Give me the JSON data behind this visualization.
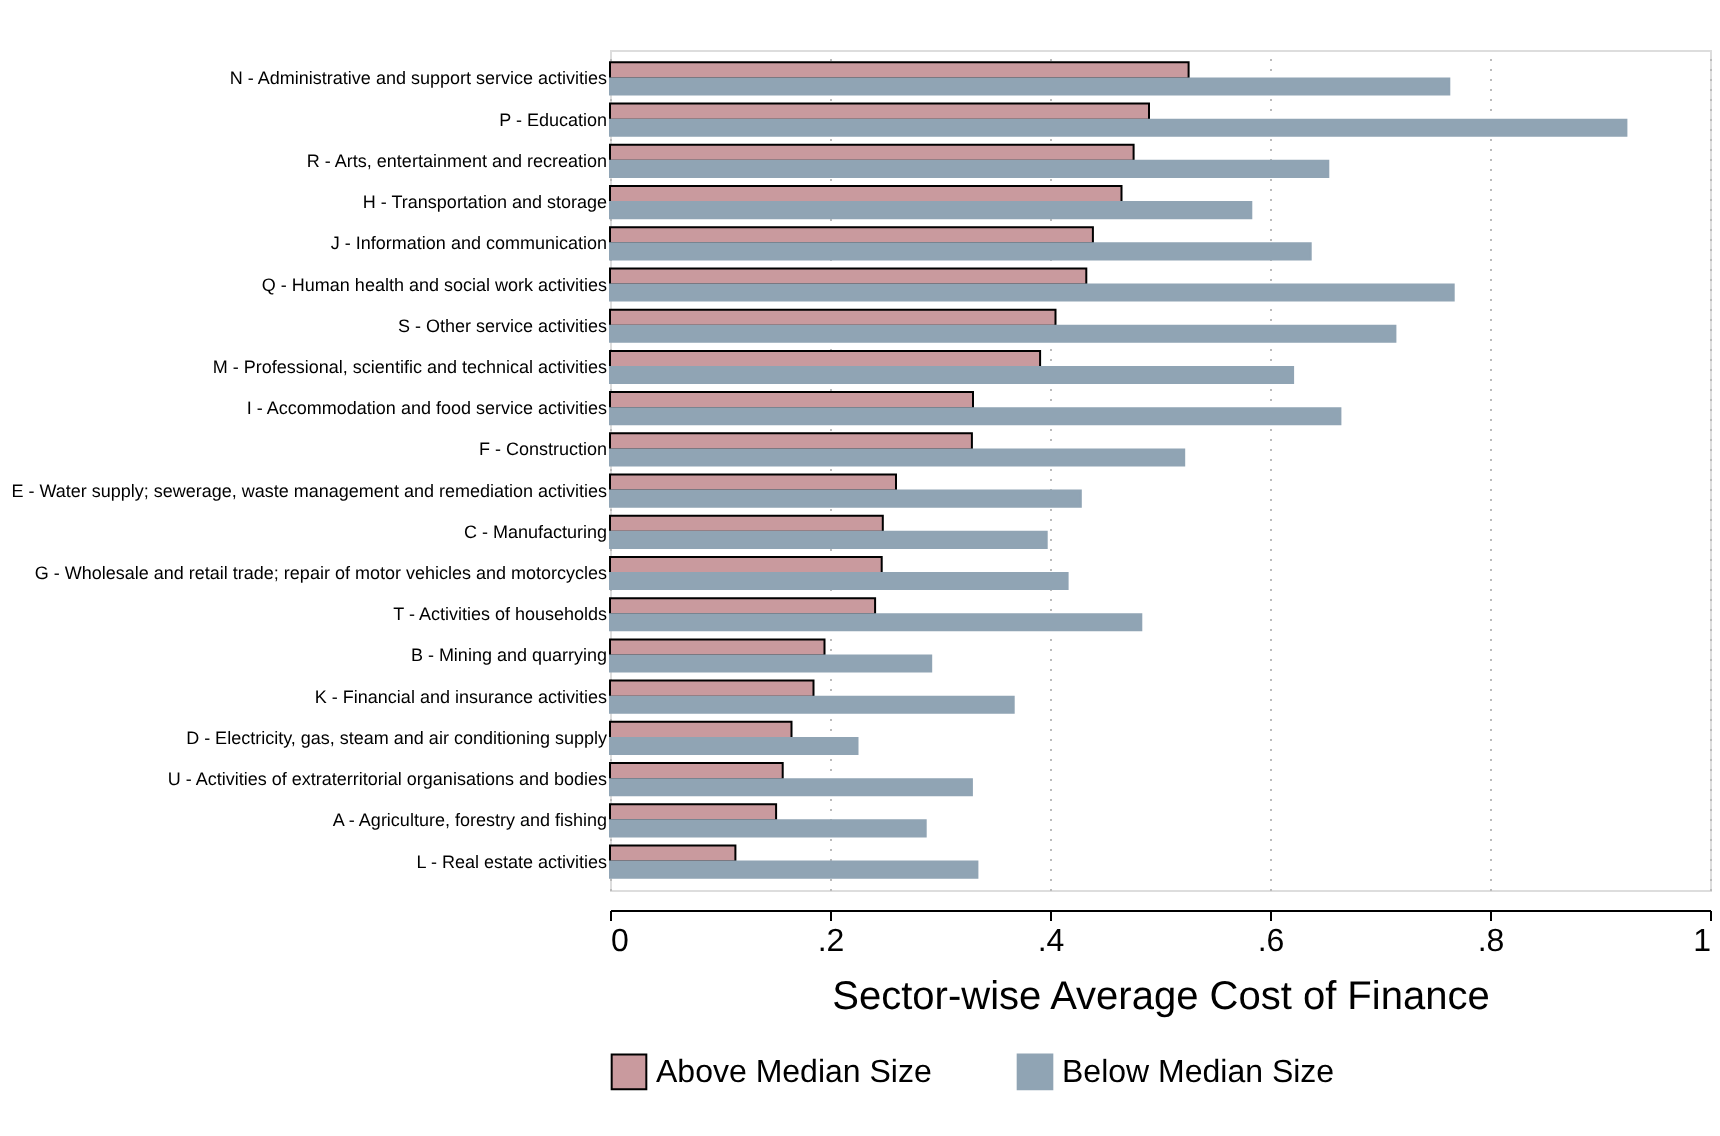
{
  "chart_data": {
    "type": "bar",
    "orientation": "horizontal",
    "xlabel": "Sector-wise Average Cost of Finance",
    "categories": [
      "N - Administrative and support service activities",
      "P - Education",
      "R - Arts, entertainment and recreation",
      "H - Transportation and storage",
      "J - Information and communication",
      "Q - Human health and social work activities",
      "S - Other service activities",
      "M - Professional, scientific and technical activities",
      "I - Accommodation and food service activities",
      "F - Construction",
      "E - Water supply; sewerage, waste management and remediation activities",
      "C - Manufacturing",
      "G - Wholesale and retail trade; repair of motor vehicles and motorcycles",
      "T - Activities of households",
      "B - Mining and quarrying",
      "K - Financial and insurance activities",
      "D - Electricity, gas, steam and air conditioning supply",
      "U - Activities of extraterritorial organisations and bodies",
      "A - Agriculture, forestry and fishing",
      "L - Real estate activities"
    ],
    "series": [
      {
        "name": "Above Median Size",
        "color": "#c99a9e",
        "values": [
          0.526,
          0.49,
          0.476,
          0.465,
          0.439,
          0.433,
          0.405,
          0.391,
          0.33,
          0.329,
          0.26,
          0.248,
          0.247,
          0.241,
          0.195,
          0.185,
          0.165,
          0.157,
          0.151,
          0.114
        ]
      },
      {
        "name": "Below Median Size",
        "color": "#90a4b4",
        "values": [
          0.763,
          0.924,
          0.653,
          0.583,
          0.637,
          0.767,
          0.714,
          0.621,
          0.664,
          0.522,
          0.428,
          0.397,
          0.416,
          0.483,
          0.292,
          0.367,
          0.225,
          0.329,
          0.287,
          0.334
        ]
      }
    ],
    "xlim": [
      0,
      1
    ],
    "xticks": [
      {
        "value": 0,
        "label": "0"
      },
      {
        "value": 0.2,
        "label": ".2"
      },
      {
        "value": 0.4,
        "label": ".4"
      },
      {
        "value": 0.6,
        "label": ".6"
      },
      {
        "value": 0.8,
        "label": ".8"
      },
      {
        "value": 1,
        "label": "1"
      }
    ],
    "grid": "x",
    "legend": "bottom"
  }
}
